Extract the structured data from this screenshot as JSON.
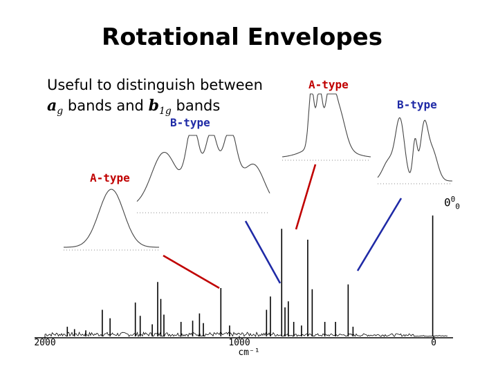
{
  "title": "Rotational Envelopes",
  "subtitle": {
    "line1": "Useful to distinguish between",
    "sym1": "a",
    "sub1": "g",
    "mid": " bands and ",
    "sym2": "b",
    "sub2": "1g",
    "end": " bands"
  },
  "labels": {
    "a_type_left": "A-type",
    "b_type_mid": "B-type",
    "a_type_right": "A-type",
    "b_type_right": "B-type",
    "origin_main": "0",
    "origin_sup": "0",
    "origin_sub": "0"
  },
  "colors": {
    "red": "#c00000",
    "blue": "#1f2aa6"
  },
  "chart_data": {
    "type": "line",
    "xlabel": "cm⁻¹",
    "ticks": [
      {
        "value": 2000,
        "label": "2000"
      },
      {
        "value": 1000,
        "label": "1000"
      },
      {
        "value": 0,
        "label": "0"
      }
    ],
    "xlim": [
      2000,
      0
    ],
    "ylim": [
      0,
      1
    ],
    "peaks": [
      {
        "x": 1885,
        "y": 0.08
      },
      {
        "x": 1848,
        "y": 0.06
      },
      {
        "x": 1790,
        "y": 0.05
      },
      {
        "x": 1705,
        "y": 0.22
      },
      {
        "x": 1665,
        "y": 0.15
      },
      {
        "x": 1535,
        "y": 0.28
      },
      {
        "x": 1510,
        "y": 0.17
      },
      {
        "x": 1448,
        "y": 0.1
      },
      {
        "x": 1420,
        "y": 0.45
      },
      {
        "x": 1404,
        "y": 0.31
      },
      {
        "x": 1388,
        "y": 0.18
      },
      {
        "x": 1300,
        "y": 0.12
      },
      {
        "x": 1240,
        "y": 0.13
      },
      {
        "x": 1205,
        "y": 0.19
      },
      {
        "x": 1185,
        "y": 0.11
      },
      {
        "x": 1095,
        "y": 0.4
      },
      {
        "x": 1050,
        "y": 0.09
      },
      {
        "x": 860,
        "y": 0.22
      },
      {
        "x": 840,
        "y": 0.33
      },
      {
        "x": 782,
        "y": 0.89
      },
      {
        "x": 765,
        "y": 0.24
      },
      {
        "x": 748,
        "y": 0.29
      },
      {
        "x": 720,
        "y": 0.12
      },
      {
        "x": 680,
        "y": 0.09
      },
      {
        "x": 648,
        "y": 0.8
      },
      {
        "x": 625,
        "y": 0.39
      },
      {
        "x": 560,
        "y": 0.12
      },
      {
        "x": 505,
        "y": 0.12
      },
      {
        "x": 440,
        "y": 0.43
      },
      {
        "x": 415,
        "y": 0.08
      },
      {
        "x": 5,
        "y": 1.0
      }
    ],
    "insets": [
      {
        "name": "inset-a-type-left",
        "shape": "single"
      },
      {
        "name": "inset-b-type-mid",
        "shape": "multi"
      },
      {
        "name": "inset-a-type-right",
        "shape": "asym"
      },
      {
        "name": "inset-b-type-right",
        "shape": "pq"
      }
    ],
    "connectors": [
      {
        "name": "connector-red-left",
        "color": "red"
      },
      {
        "name": "connector-blue-mid",
        "color": "blue"
      },
      {
        "name": "connector-red-right",
        "color": "red"
      },
      {
        "name": "connector-blue-right",
        "color": "blue"
      }
    ]
  }
}
